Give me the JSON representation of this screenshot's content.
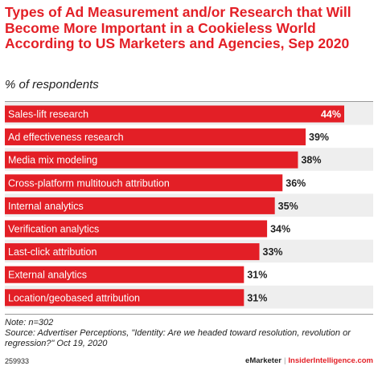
{
  "title": "Types of Ad Measurement and/or Research that Will Become More Important in a Cookieless World According to US Marketers and Agencies, Sep 2020",
  "subtitle": "% of respondents",
  "colors": {
    "accent": "#e31f26",
    "text": "#222222",
    "row_alt": "#eeeeee"
  },
  "chart_data": {
    "type": "bar",
    "orientation": "horizontal",
    "categories": [
      "Sales-lift research",
      "Ad effectiveness research",
      "Media mix modeling",
      "Cross-platform multitouch attribution",
      "Internal analytics",
      "Verification analytics",
      "Last-click attribution",
      "External analytics",
      "Location/geobased attribution"
    ],
    "values": [
      44,
      39,
      38,
      36,
      35,
      34,
      33,
      31,
      31
    ],
    "value_labels": [
      "44%",
      "39%",
      "38%",
      "36%",
      "35%",
      "34%",
      "33%",
      "31%",
      "31%"
    ],
    "xlim": [
      0,
      44
    ],
    "grid": false,
    "legend": "none"
  },
  "footnote": {
    "note": "Note: n=302",
    "source": "Source: Advertiser Perceptions, \"Identity: Are we headed toward resolution, revolution or regression?\" Oct 19, 2020"
  },
  "chart_id": "259933",
  "brand": {
    "emarketer": "eMarketer",
    "separator": "|",
    "insider": "InsiderIntelligence.com"
  }
}
